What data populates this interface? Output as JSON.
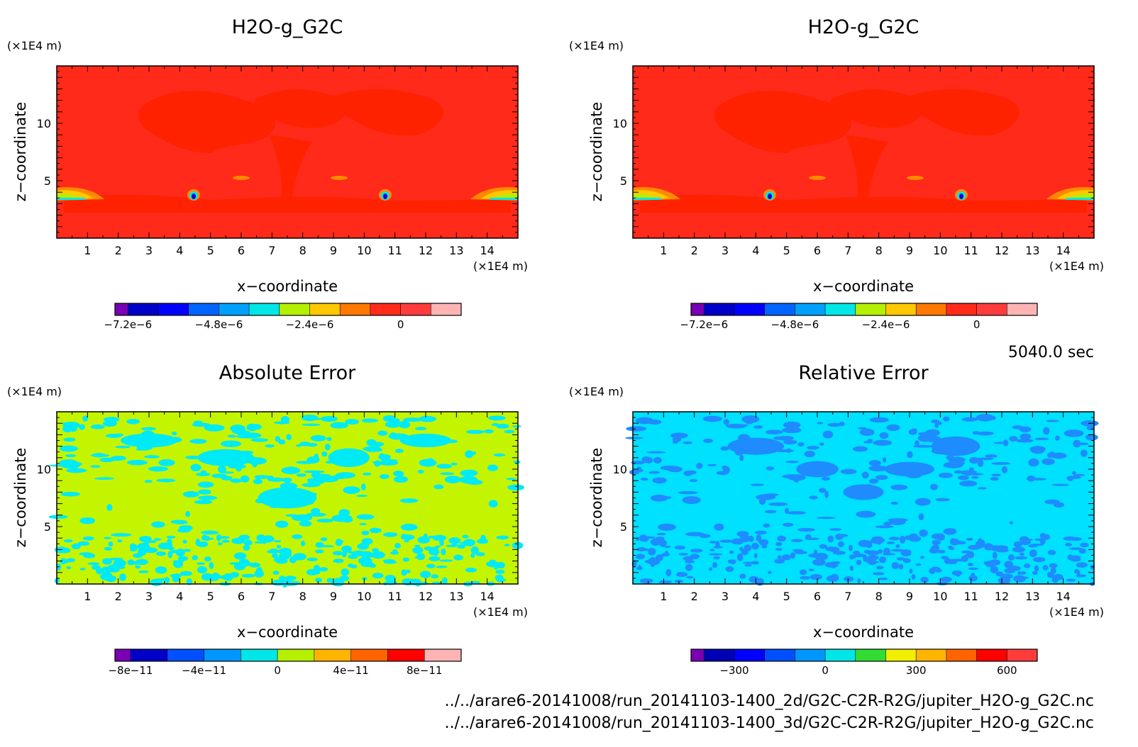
{
  "colors": {
    "background_red": "#ff2a1a",
    "abs_background": "#c4f500",
    "rel_background": "#00e0ff",
    "rel_patch": "#1e8cff",
    "abs_patch": "#00eaf5"
  },
  "time_label": "5040.0 sec",
  "footer": {
    "file_2d": "../../arare6-20141008/run_20141103-1400_2d/G2C-C2R-R2G/jupiter_H2O-g_G2C.nc",
    "file_3d": "../../arare6-20141008/run_20141103-1400_3d/G2C-C2R-R2G/jupiter_H2O-g_G2C.nc"
  },
  "chart_data": [
    {
      "type": "heatmap",
      "title": "H2O-g_G2C",
      "xlabel": "x−coordinate",
      "ylabel": "z−coordinate",
      "x_unit": "(×1E4 m)",
      "y_unit": "(×1E4 m)",
      "xlim": [
        0,
        15
      ],
      "ylim": [
        0,
        15
      ],
      "x_ticks": [
        "1",
        "2",
        "3",
        "4",
        "5",
        "6",
        "7",
        "8",
        "9",
        "10",
        "11",
        "12",
        "13",
        "14"
      ],
      "y_ticks": [
        "5",
        "10"
      ],
      "colorbar": {
        "colors": [
          "#7a00b4",
          "#0000c8",
          "#0000ff",
          "#0064ff",
          "#00a0ff",
          "#00e6e6",
          "#b4f000",
          "#ffc800",
          "#ff7800",
          "#ff2a1a",
          "#ff3c3c",
          "#ffb4b4"
        ],
        "tick_labels": [
          "−7.2e−6",
          "−4.8e−6",
          "−2.4e−6",
          "0"
        ],
        "tick_index": [
          1,
          4,
          7,
          10
        ]
      }
    },
    {
      "type": "heatmap",
      "title": "H2O-g_G2C",
      "xlabel": "x−coordinate",
      "ylabel": "z−coordinate",
      "x_unit": "(×1E4 m)",
      "y_unit": "(×1E4 m)",
      "xlim": [
        0,
        15
      ],
      "ylim": [
        0,
        15
      ],
      "x_ticks": [
        "1",
        "2",
        "3",
        "4",
        "5",
        "6",
        "7",
        "8",
        "9",
        "10",
        "11",
        "12",
        "13",
        "14"
      ],
      "y_ticks": [
        "5",
        "10"
      ],
      "colorbar": {
        "colors": [
          "#7a00b4",
          "#0000c8",
          "#0000ff",
          "#0064ff",
          "#00a0ff",
          "#00e6e6",
          "#b4f000",
          "#ffc800",
          "#ff7800",
          "#ff2a1a",
          "#ff3c3c",
          "#ffb4b4"
        ],
        "tick_labels": [
          "−7.2e−6",
          "−4.8e−6",
          "−2.4e−6",
          "0"
        ],
        "tick_index": [
          1,
          4,
          7,
          10
        ]
      }
    },
    {
      "type": "heatmap",
      "title": "Absolute Error",
      "xlabel": "x−coordinate",
      "ylabel": "z−coordinate",
      "x_unit": "(×1E4 m)",
      "y_unit": "(×1E4 m)",
      "xlim": [
        0,
        15
      ],
      "ylim": [
        0,
        15
      ],
      "x_ticks": [
        "1",
        "2",
        "3",
        "4",
        "5",
        "6",
        "7",
        "8",
        "9",
        "10",
        "11",
        "12",
        "13",
        "14"
      ],
      "y_ticks": [
        "5",
        "10"
      ],
      "colorbar": {
        "colors": [
          "#7a00b4",
          "#0000c8",
          "#0050ff",
          "#0096ff",
          "#00e6e6",
          "#b4f000",
          "#ffb400",
          "#ff6400",
          "#ff0000",
          "#ffb4b4"
        ],
        "tick_labels": [
          "−8e−11",
          "−4e−11",
          "0",
          "4e−11",
          "8e−11"
        ],
        "tick_index": [
          1,
          3,
          5,
          7,
          9
        ]
      }
    },
    {
      "type": "heatmap",
      "title": "Relative Error",
      "xlabel": "x−coordinate",
      "ylabel": "z−coordinate",
      "x_unit": "(×1E4 m)",
      "y_unit": "(×1E4 m)",
      "xlim": [
        0,
        15
      ],
      "ylim": [
        0,
        15
      ],
      "x_ticks": [
        "1",
        "2",
        "3",
        "4",
        "5",
        "6",
        "7",
        "8",
        "9",
        "10",
        "11",
        "12",
        "13",
        "14"
      ],
      "y_ticks": [
        "5",
        "10"
      ],
      "colorbar": {
        "colors": [
          "#7a00b4",
          "#0000b4",
          "#0000ff",
          "#0050ff",
          "#0096ff",
          "#00e6e6",
          "#32dc32",
          "#f0f000",
          "#ffb400",
          "#ff6400",
          "#ff0000",
          "#ff3c3c"
        ],
        "tick_labels": [
          "−300",
          "0",
          "300",
          "600"
        ],
        "tick_index": [
          2,
          5,
          8,
          11
        ]
      }
    }
  ]
}
